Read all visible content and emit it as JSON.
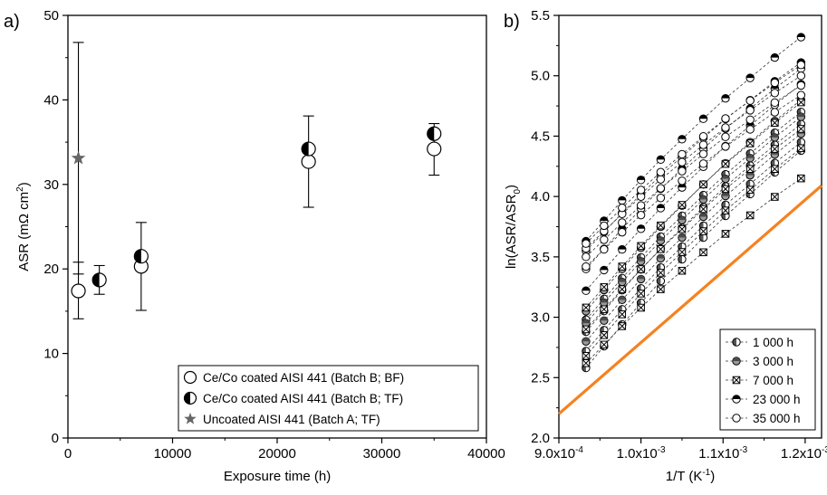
{
  "figure": {
    "panel_a_label": "a)",
    "panel_b_label": "b)"
  },
  "chart_data": [
    {
      "type": "scatter",
      "panel": "a)",
      "xlabel": "Exposure time (h)",
      "ylabel_main": "ASR (mΩ cm",
      "ylabel_sup": "2",
      "ylabel_tail": ")",
      "xlim": [
        0,
        40000
      ],
      "ylim": [
        0,
        50
      ],
      "xticks": [
        0,
        10000,
        20000,
        30000,
        40000
      ],
      "xtick_labels": [
        "0",
        "10000",
        "20000",
        "30000",
        "40000"
      ],
      "yticks": [
        0,
        10,
        20,
        30,
        40,
        50
      ],
      "ytick_labels": [
        "0",
        "10",
        "20",
        "30",
        "40",
        "50"
      ],
      "legend_position": "bottom-right",
      "series": [
        {
          "name": "Ce/Co coated AISI 441 (Batch B; BF)",
          "marker": "open-circle",
          "points": [
            {
              "x": 1000,
              "y": 17.4
            },
            {
              "x": 7000,
              "y": 20.3
            },
            {
              "x": 23000,
              "y": 32.7
            },
            {
              "x": 35000,
              "y": 34.2
            }
          ]
        },
        {
          "name": "Ce/Co coated AISI 441 (Batch B; TF)",
          "marker": "half-filled-circle",
          "points": [
            {
              "x": 3000,
              "y": 18.7
            },
            {
              "x": 7000,
              "y": 21.5
            },
            {
              "x": 23000,
              "y": 34.2
            },
            {
              "x": 35000,
              "y": 36.0
            }
          ]
        },
        {
          "name": "Uncoated AISI 441 (Batch A; TF)",
          "marker": "star",
          "color": "#666666",
          "points": [
            {
              "x": 1000,
              "y": 33.1
            }
          ]
        }
      ],
      "error_bars": [
        {
          "x": 1000,
          "low": 14.1,
          "high": 20.8
        },
        {
          "x": 1000,
          "low": 19.4,
          "high": 46.8
        },
        {
          "x": 3000,
          "low": 17.0,
          "high": 20.4
        },
        {
          "x": 7000,
          "low": 15.1,
          "high": 25.5
        },
        {
          "x": 23000,
          "low": 27.3,
          "high": 38.1
        },
        {
          "x": 35000,
          "low": 31.1,
          "high": 37.2
        }
      ]
    },
    {
      "type": "scatter",
      "panel": "b)",
      "xlabel_main": "1/T (K",
      "xlabel_sup": "-1",
      "xlabel_tail": ")",
      "ylabel_main": "ln(ASR/ASR",
      "ylabel_sub": "0",
      "ylabel_tail": ")",
      "xlim": [
        0.0009,
        0.00122
      ],
      "ylim": [
        2.0,
        5.5
      ],
      "xticks": [
        0.0009,
        0.001,
        0.0011,
        0.0012
      ],
      "xtick_labels_main": [
        "9.0x10",
        "1.0x10",
        "1.1x10",
        "1.2x10"
      ],
      "xtick_labels_exp": [
        "-4",
        "-3",
        "-3",
        "-3"
      ],
      "yticks": [
        2.0,
        2.5,
        3.0,
        3.5,
        4.0,
        4.5,
        5.0,
        5.5
      ],
      "ytick_labels": [
        "2.0",
        "2.5",
        "3.0",
        "3.5",
        "4.0",
        "4.5",
        "5.0",
        "5.5"
      ],
      "legend_position": "bottom-right",
      "x_points": [
        0.000933,
        0.000955,
        0.000977,
        0.001,
        0.001024,
        0.00105,
        0.001076,
        0.001103,
        0.001133,
        0.001163,
        0.001195
      ],
      "guide_line": {
        "color": "#f58220",
        "x": [
          0.0009,
          0.00122
        ],
        "y": [
          2.2,
          4.09
        ]
      },
      "series": [
        {
          "name": "1 000 h",
          "marker": "half-left",
          "lines": [
            {
              "start": 2.58,
              "end": 4.38
            },
            {
              "start": 2.72,
              "end": 4.45
            },
            {
              "start": 2.88,
              "end": 4.6
            },
            {
              "start": 2.98,
              "end": 4.7
            }
          ]
        },
        {
          "name": "3 000 h",
          "marker": "gray-filled",
          "lines": [
            {
              "start": 2.8,
              "end": 4.52
            },
            {
              "start": 2.95,
              "end": 4.66
            },
            {
              "start": 3.05,
              "end": 4.8
            }
          ]
        },
        {
          "name": "7 000 h",
          "marker": "crossed-square",
          "lines": [
            {
              "start": 2.62,
              "end": 4.15
            },
            {
              "start": 2.68,
              "end": 4.4
            },
            {
              "start": 2.9,
              "end": 4.56
            },
            {
              "start": 3.08,
              "end": 4.78
            }
          ]
        },
        {
          "name": "23 000 h",
          "marker": "half-top",
          "lines": [
            {
              "start": 3.22,
              "end": 4.93
            },
            {
              "start": 3.4,
              "end": 5.06
            },
            {
              "start": 3.55,
              "end": 5.11
            },
            {
              "start": 3.63,
              "end": 5.32
            }
          ]
        },
        {
          "name": "35 000 h",
          "marker": "open-circle",
          "lines": [
            {
              "start": 3.42,
              "end": 4.84
            },
            {
              "start": 3.5,
              "end": 4.92
            },
            {
              "start": 3.57,
              "end": 5.0
            },
            {
              "start": 3.61,
              "end": 5.09
            }
          ]
        }
      ]
    }
  ]
}
